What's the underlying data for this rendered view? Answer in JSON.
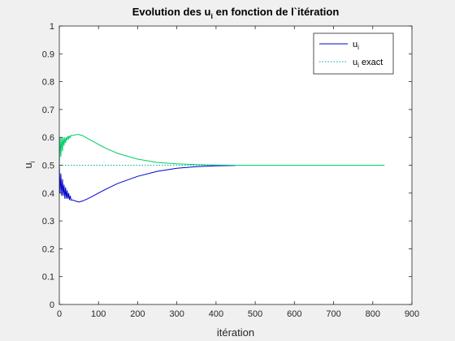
{
  "chart_data": {
    "type": "line",
    "title": "Evolution des u",
    "title_sub": "i",
    "title_tail": " en fonction de l`itération",
    "xlabel": "itération",
    "ylabel": "u",
    "ylabel_sub": "i",
    "xlim": [
      0,
      900
    ],
    "ylim": [
      0,
      1
    ],
    "xticks": [
      0,
      100,
      200,
      300,
      400,
      500,
      600,
      700,
      800,
      900
    ],
    "yticks": [
      0,
      0.1,
      0.2,
      0.3,
      0.4,
      0.5,
      0.6,
      0.7,
      0.8,
      0.9,
      1
    ],
    "grid": false,
    "legend_position": "top-right",
    "legend": [
      {
        "label": "u",
        "sub": "i",
        "style": "solid",
        "color": "#0000cc"
      },
      {
        "label": "u",
        "sub": "i",
        "tail": " exact",
        "style": "dotted",
        "color": "#00aaaa"
      }
    ],
    "series": [
      {
        "color": "#0000cc",
        "style": "solid",
        "x": [
          0,
          2,
          4,
          6,
          8,
          10,
          12,
          14,
          16,
          18,
          20,
          22,
          24,
          26,
          28,
          30,
          35,
          40,
          45,
          50,
          60,
          70,
          80,
          100,
          120,
          150,
          200,
          250,
          300,
          350,
          400,
          450
        ],
        "y": [
          0.5,
          0.4,
          0.47,
          0.39,
          0.45,
          0.39,
          0.43,
          0.38,
          0.42,
          0.38,
          0.41,
          0.38,
          0.4,
          0.375,
          0.39,
          0.375,
          0.375,
          0.372,
          0.37,
          0.368,
          0.372,
          0.378,
          0.385,
          0.4,
          0.415,
          0.435,
          0.46,
          0.478,
          0.489,
          0.495,
          0.498,
          0.499
        ]
      },
      {
        "color": "#00cc66",
        "style": "solid",
        "x": [
          0,
          2,
          4,
          6,
          8,
          10,
          12,
          14,
          16,
          18,
          20,
          22,
          24,
          26,
          28,
          30,
          35,
          40,
          45,
          50,
          60,
          70,
          80,
          100,
          120,
          150,
          200,
          250,
          300,
          350,
          400,
          450,
          500,
          600,
          700,
          830
        ],
        "y": [
          0.5,
          0.6,
          0.53,
          0.6,
          0.55,
          0.6,
          0.57,
          0.6,
          0.58,
          0.6,
          0.59,
          0.605,
          0.595,
          0.605,
          0.6,
          0.607,
          0.607,
          0.609,
          0.61,
          0.61,
          0.606,
          0.598,
          0.59,
          0.575,
          0.56,
          0.542,
          0.522,
          0.51,
          0.505,
          0.502,
          0.501,
          0.5,
          0.5,
          0.5,
          0.5,
          0.5
        ]
      },
      {
        "color": "#00aaaa",
        "style": "dotted",
        "x": [
          0,
          450
        ],
        "y": [
          0.5,
          0.5
        ]
      }
    ]
  }
}
